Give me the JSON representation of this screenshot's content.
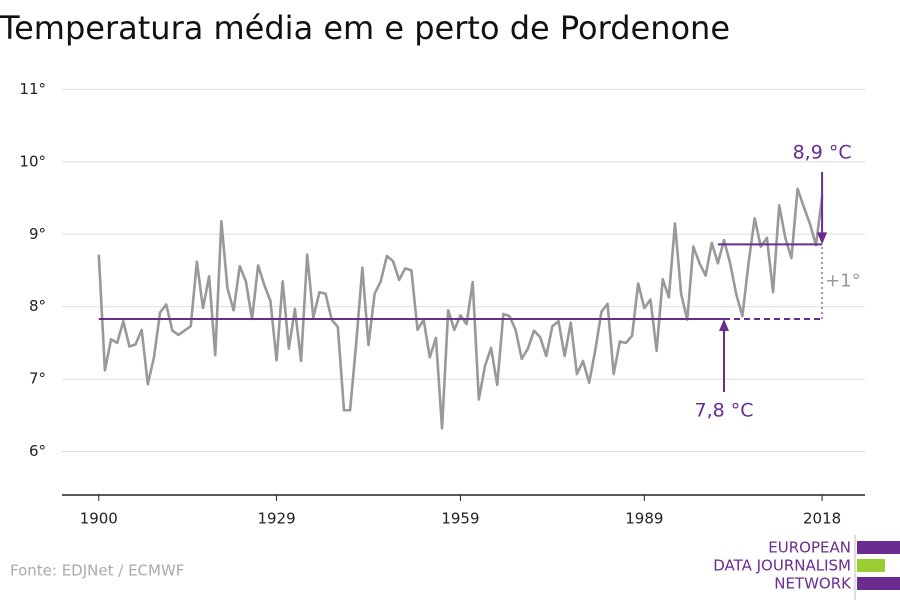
{
  "chart_data": {
    "type": "line",
    "title": "Temperatura média em e perto de Pordenone",
    "source": "Fonte: EDJNet / ECMWF",
    "logo": [
      "EUROPEAN",
      "DATA JOURNALISM",
      "NETWORK"
    ],
    "x": [
      1900,
      1901,
      1902,
      1903,
      1904,
      1905,
      1906,
      1907,
      1908,
      1909,
      1910,
      1911,
      1912,
      1913,
      1914,
      1915,
      1916,
      1917,
      1918,
      1919,
      1920,
      1921,
      1922,
      1923,
      1924,
      1925,
      1926,
      1927,
      1928,
      1929,
      1930,
      1931,
      1932,
      1933,
      1934,
      1935,
      1936,
      1937,
      1938,
      1939,
      1940,
      1941,
      1942,
      1943,
      1944,
      1945,
      1946,
      1947,
      1948,
      1949,
      1950,
      1951,
      1952,
      1953,
      1954,
      1955,
      1956,
      1957,
      1958,
      1959,
      1960,
      1961,
      1962,
      1963,
      1964,
      1965,
      1966,
      1967,
      1968,
      1969,
      1970,
      1971,
      1972,
      1973,
      1974,
      1975,
      1976,
      1977,
      1978,
      1979,
      1980,
      1981,
      1982,
      1983,
      1984,
      1985,
      1986,
      1987,
      1988,
      1989,
      1990,
      1991,
      1992,
      1993,
      1994,
      1995,
      1996,
      1997,
      1998,
      1999,
      2000,
      2001,
      2002,
      2003,
      2004,
      2005,
      2006,
      2007,
      2008,
      2009,
      2010,
      2011,
      2012,
      2013,
      2014,
      2015,
      2016,
      2017,
      2018
    ],
    "series": [
      {
        "color": "#999999",
        "values": [
          8.72,
          7.12,
          7.55,
          7.5,
          7.8,
          7.45,
          7.48,
          7.68,
          6.93,
          7.3,
          7.92,
          8.03,
          7.67,
          7.61,
          7.67,
          7.73,
          8.62,
          7.98,
          8.42,
          7.33,
          9.18,
          8.25,
          7.95,
          8.56,
          8.35,
          7.83,
          8.57,
          8.3,
          8.08,
          7.26,
          8.35,
          7.42,
          7.97,
          7.25,
          8.72,
          7.85,
          8.2,
          8.18,
          7.82,
          7.72,
          6.57,
          6.57,
          7.5,
          8.54,
          7.47,
          8.18,
          8.35,
          8.7,
          8.63,
          8.37,
          8.53,
          8.5,
          7.68,
          7.82,
          7.3,
          7.57,
          6.32,
          7.95,
          7.68,
          7.88,
          7.76,
          8.34,
          6.72,
          7.18,
          7.43,
          6.92,
          7.9,
          7.87,
          7.68,
          7.28,
          7.42,
          7.67,
          7.58,
          7.32,
          7.73,
          7.8,
          7.32,
          7.78,
          7.07,
          7.25,
          6.95,
          7.4,
          7.93,
          8.04,
          7.07,
          7.52,
          7.5,
          7.6,
          8.32,
          7.98,
          8.1,
          7.39,
          8.38,
          8.13,
          9.15,
          8.18,
          7.82,
          8.83,
          8.6,
          8.43,
          8.88,
          8.6,
          8.92,
          8.6,
          8.17,
          7.87,
          8.6,
          9.22,
          8.83,
          8.95,
          8.2,
          9.4,
          8.95,
          8.67,
          9.63,
          9.38,
          9.15,
          8.85,
          9.52
        ]
      }
    ],
    "reference_lines": [
      {
        "value": 7.83,
        "label": "7,8 °C",
        "from": 1900,
        "to": 2018,
        "dashed_from": 2002,
        "color": "#6a2c91"
      },
      {
        "value": 8.86,
        "label": "8,9 °C",
        "from": 2001,
        "to": 2018,
        "color": "#6a2c91"
      }
    ],
    "difference_label": "+1°",
    "xlim": [
      1894,
      2025
    ],
    "xticks": [
      1900,
      1929,
      1959,
      1989,
      2018
    ],
    "ylim": [
      5.4,
      11.13
    ],
    "yticks": [
      {
        "value": 6,
        "label": "6°"
      },
      {
        "value": 7,
        "label": "7°"
      },
      {
        "value": 8,
        "label": "8°"
      },
      {
        "value": 9,
        "label": "9°"
      },
      {
        "value": 10,
        "label": "10°"
      },
      {
        "value": 11,
        "label": "11°"
      }
    ],
    "grid": true
  }
}
